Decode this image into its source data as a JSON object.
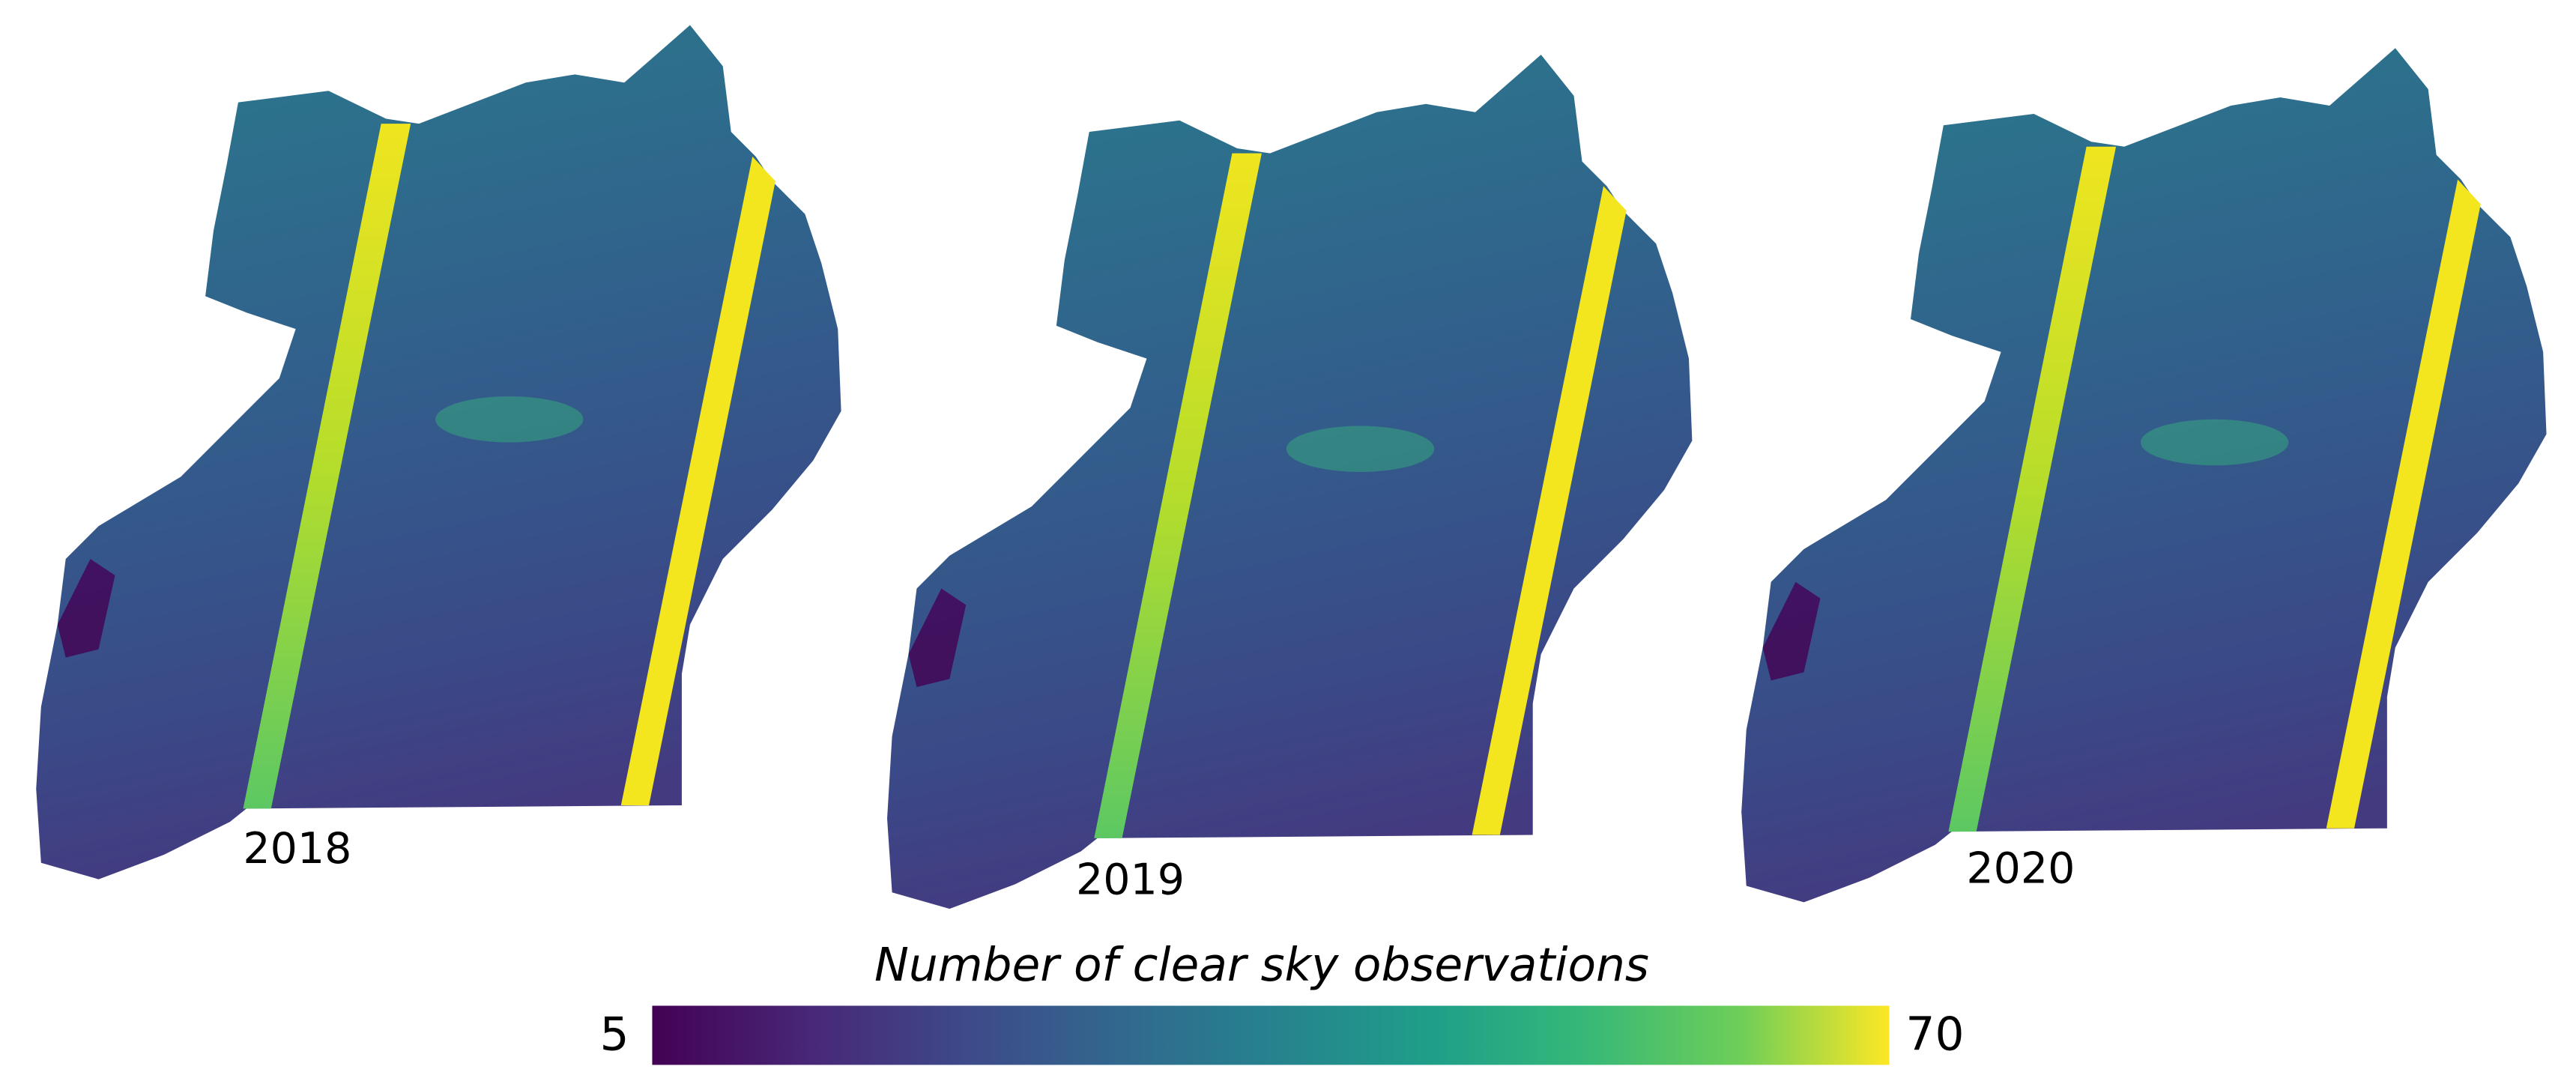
{
  "panels": [
    {
      "label": "2018"
    },
    {
      "label": "2019"
    },
    {
      "label": "2020"
    }
  ],
  "colorbar": {
    "title": "Number of clear sky observations",
    "min": 5,
    "max": 70
  }
}
